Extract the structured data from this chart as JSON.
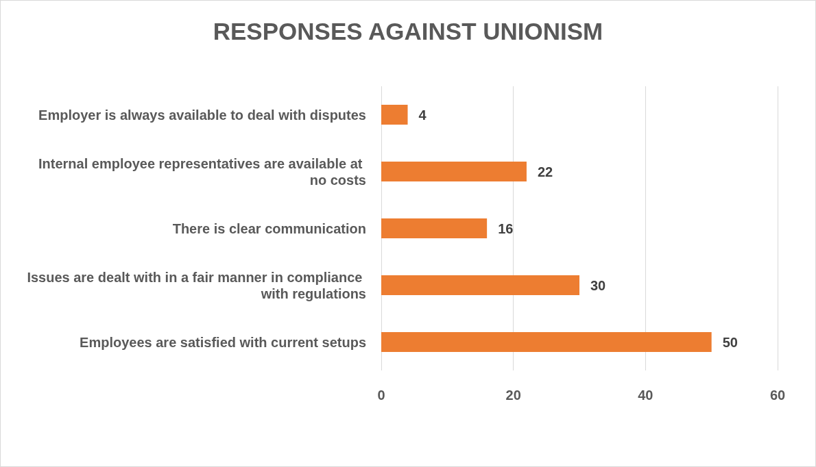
{
  "chart_data": {
    "type": "bar",
    "orientation": "horizontal",
    "title": "RESPONSES AGAINST UNIONISM",
    "categories": [
      "Employer is always available to deal with disputes",
      "Internal employee representatives are available at no costs",
      "There is clear communication",
      "Issues are dealt with in a fair manner in compliance with regulations",
      "Employees are satisfied with current setups"
    ],
    "values": [
      4,
      22,
      16,
      30,
      50
    ],
    "color": "#ed7d31",
    "xlim": [
      0,
      60
    ],
    "xticks": [
      0,
      20,
      40,
      60
    ],
    "grid": "x",
    "data_labels": true
  }
}
